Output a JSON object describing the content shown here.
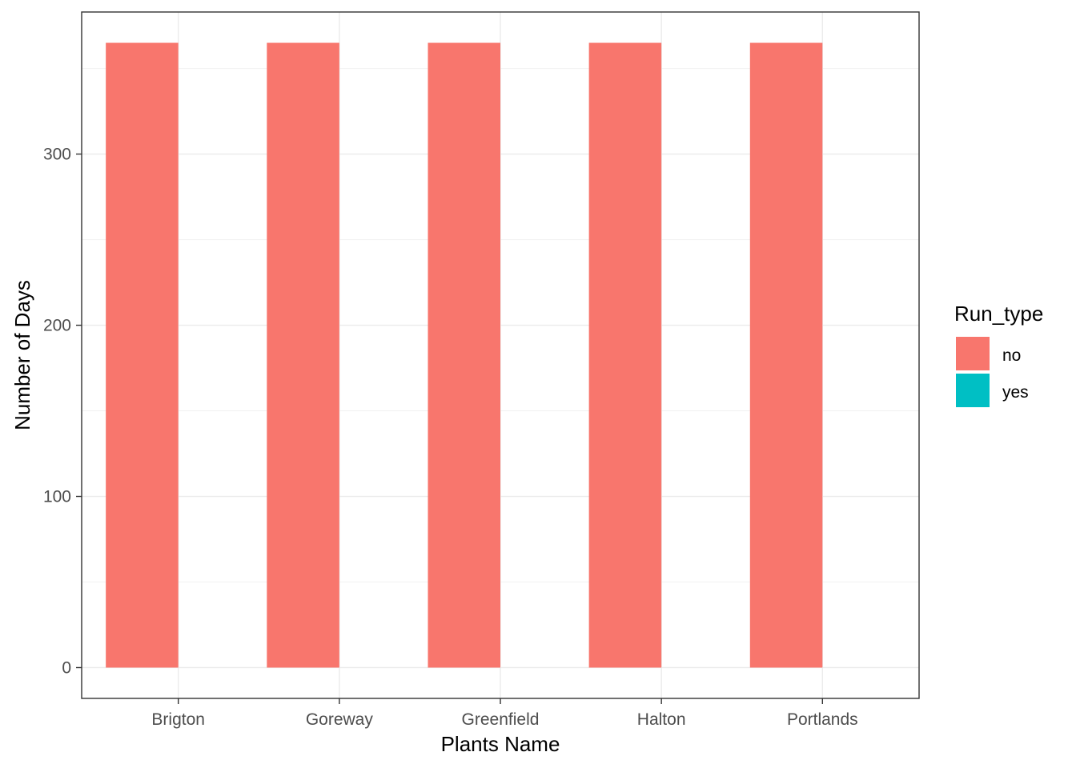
{
  "chart_data": {
    "type": "bar",
    "title": "",
    "xlabel": "Plants Name",
    "ylabel": "Number of Days",
    "categories": [
      "Brigton",
      "Goreway",
      "Greenfield",
      "Halton",
      "Portlands"
    ],
    "series": [
      {
        "name": "no",
        "values": [
          365,
          365,
          365,
          365,
          365
        ],
        "color": "#F8766D"
      },
      {
        "name": "yes",
        "values": [
          0,
          0,
          0,
          0,
          0
        ],
        "color": "#00BFC4"
      }
    ],
    "ylim": [
      -18,
      383
    ],
    "yticks": [
      0,
      100,
      200,
      300
    ],
    "grid": true,
    "legend": {
      "title": "Run_type",
      "position": "right",
      "entries": [
        {
          "label": "no",
          "color": "#F8766D"
        },
        {
          "label": "yes",
          "color": "#00BFC4"
        }
      ]
    }
  }
}
